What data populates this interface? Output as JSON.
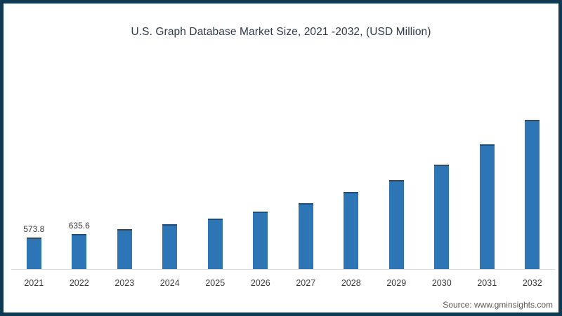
{
  "chart_data": {
    "type": "bar",
    "title": "U.S. Graph Database Market Size, 2021 -2032, (USD Million)",
    "categories": [
      "2021",
      "2022",
      "2023",
      "2024",
      "2025",
      "2026",
      "2027",
      "2028",
      "2029",
      "2030",
      "2031",
      "2032"
    ],
    "values": [
      573.8,
      635.6,
      725,
      810,
      915,
      1040,
      1195,
      1395,
      1615,
      1890,
      2260,
      2705
    ],
    "data_labels": [
      "573.8",
      "635.6",
      "",
      "",
      "",
      "",
      "",
      "",
      "",
      "",
      "",
      ""
    ],
    "xlabel": "",
    "ylabel": "",
    "grid": false,
    "legend": "none",
    "source": "Source: www.gminsights.com",
    "colors": {
      "bar": "#2e75b6",
      "bar_top": "#1e4e79",
      "axis_line": "#d9d9d9",
      "frame_border": "#0e3a53",
      "title_text": "#2e3b4e",
      "label_text": "#3b3b3b",
      "source_text": "#595959"
    }
  }
}
